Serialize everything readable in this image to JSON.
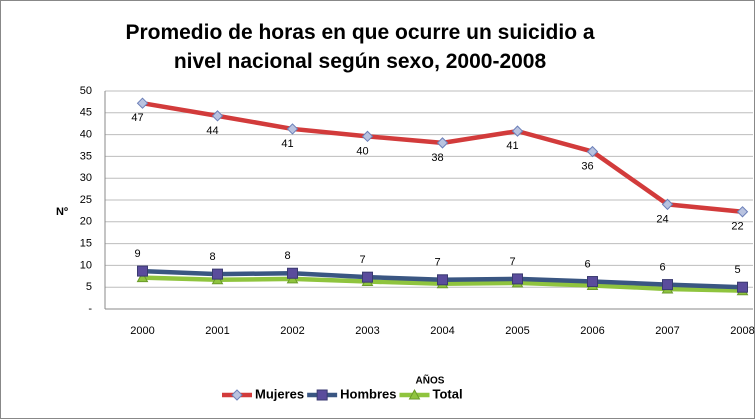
{
  "chart_data": {
    "type": "line",
    "title": "Promedio de horas en que ocurre un suicidio a nivel nacional según sexo,   2000-2008",
    "x_label": "AÑOS",
    "y_label": "Nº",
    "categories": [
      "2000",
      "2001",
      "2002",
      "2003",
      "2004",
      "2005",
      "2006",
      "2007",
      "2008"
    ],
    "series": [
      {
        "name": "Mujeres",
        "color": "#d23b3b",
        "marker_color": "#b9c3e0",
        "marker": "diamond",
        "values": [
          47.2,
          44.3,
          41.3,
          39.6,
          38.1,
          40.8,
          36.1,
          24.0,
          22.3
        ],
        "value_labels": [
          "47",
          "44",
          "41",
          "40",
          "38",
          "41",
          "36",
          "24",
          "22"
        ]
      },
      {
        "name": "Hombres",
        "color": "#3a5682",
        "marker_color": "#5a4c9c",
        "marker": "square",
        "values": [
          8.7,
          8.0,
          8.2,
          7.3,
          6.7,
          6.9,
          6.3,
          5.6,
          5.0
        ],
        "value_labels": [
          "9",
          "8",
          "8",
          "7",
          "7",
          "7",
          "6",
          "6",
          "5"
        ]
      },
      {
        "name": "Total",
        "color": "#8fc43e",
        "marker_color": "#8fc43e",
        "marker": "triangle",
        "values": [
          7.2,
          6.7,
          6.9,
          6.3,
          5.8,
          6.0,
          5.4,
          4.6,
          4.2
        ]
      }
    ],
    "ylim": [
      0,
      50
    ],
    "yticks": [
      {
        "value": 0,
        "label": "-"
      },
      5,
      10,
      15,
      20,
      25,
      30,
      35,
      40,
      45,
      50
    ],
    "grid": true,
    "legend": "bottom"
  }
}
